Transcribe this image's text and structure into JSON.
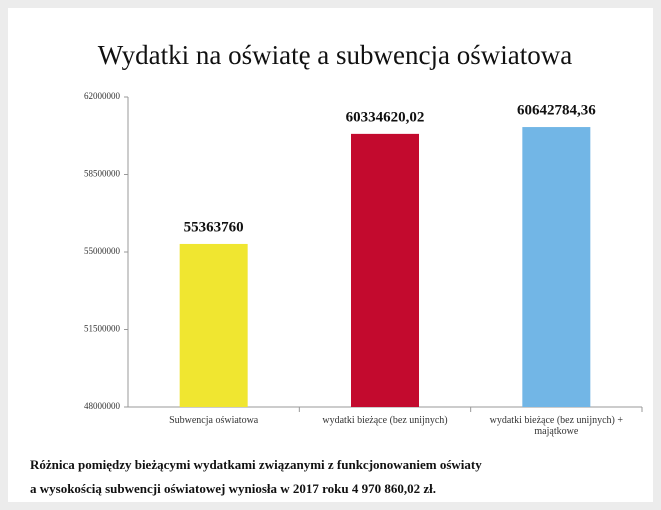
{
  "chart_data": {
    "type": "bar",
    "title": "Wydatki na oświatę a subwencja oświatowa",
    "categories": [
      "Subwencja oświatowa",
      "wydatki bieżące (bez unijnych)",
      "wydatki bieżące (bez unijnych) + majątkowe"
    ],
    "values": [
      55363760,
      60334620.02,
      60642784.36
    ],
    "value_labels": [
      "55363760",
      "60334620,02",
      "60642784,36"
    ],
    "colors": [
      "#f0e630",
      "#c30a2e",
      "#72b6e6"
    ],
    "ylim": [
      48000000,
      62000000
    ],
    "yticks": [
      48000000,
      51500000,
      55000000,
      58500000,
      62000000
    ],
    "grid": false,
    "note": [
      "Różnica pomiędzy bieżącymi  wydatkami związanymi z funkcjonowaniem oświaty",
      "a wysokością subwencji oświatowej wyniosła w 2017 roku  4 970 860,02 zł."
    ]
  }
}
